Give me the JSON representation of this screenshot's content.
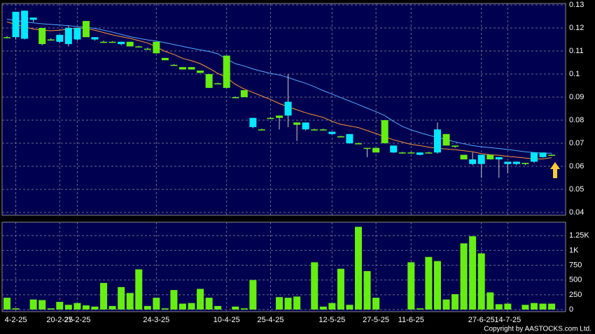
{
  "chart_data": {
    "type": "candlestick",
    "categories": [
      null,
      "4-2-25",
      null,
      null,
      null,
      null,
      "20-2-25",
      null,
      "27-2-25",
      null,
      null,
      null,
      null,
      null,
      null,
      null,
      null,
      "24-3-25",
      null,
      null,
      null,
      null,
      null,
      null,
      null,
      "10-4-25",
      null,
      null,
      null,
      null,
      "25-4-25",
      null,
      null,
      null,
      null,
      null,
      null,
      "12-5-25",
      null,
      null,
      null,
      null,
      "27-5-25",
      null,
      null,
      null,
      "11-6-25",
      null,
      null,
      null,
      null,
      null,
      null,
      null,
      "27-6-25",
      null,
      null,
      "14-7-25",
      null,
      null,
      null,
      null,
      null
    ],
    "open": [
      0.116,
      0.116,
      0.1153,
      0.1235,
      0.12,
      0.115,
      0.114,
      0.113,
      0.115,
      0.123,
      0.115,
      0.114,
      0.114,
      0.113,
      0.114,
      0.112,
      0.111,
      0.114,
      0.107,
      0.104,
      0.103,
      0.103,
      0.1015,
      0.1,
      0.096,
      0.108,
      0.09,
      0.093,
      0.077,
      0.076,
      0.081,
      0.082,
      0.082,
      0.079,
      0.076,
      0.076,
      0.076,
      0.074,
      0.073,
      0.07,
      0.07,
      0.068,
      0.068,
      0.08,
      0.066,
      0.066,
      0.066,
      0.065,
      0.066,
      0.066,
      0.074,
      0.069,
      0.065,
      0.061,
      0.061,
      0.065,
      0.063,
      0.061,
      0.061,
      0.0615,
      0.062,
      0.064,
      0.065
    ],
    "high": [
      0.1165,
      0.127,
      0.1275,
      0.1245,
      0.12,
      0.1155,
      0.117,
      0.121,
      0.12,
      0.123,
      0.116,
      0.1145,
      0.1143,
      0.114,
      0.114,
      0.1123,
      0.1115,
      0.114,
      0.107,
      0.1043,
      0.103,
      0.103,
      0.1015,
      0.1,
      0.0963,
      0.108,
      0.0903,
      0.093,
      0.081,
      0.0763,
      0.0813,
      0.082,
      0.1,
      0.079,
      0.079,
      0.0763,
      0.0763,
      0.075,
      0.0733,
      0.074,
      0.0703,
      0.068,
      0.068,
      0.08,
      0.069,
      0.0663,
      0.0663,
      0.066,
      0.0663,
      0.079,
      0.074,
      0.069,
      0.065,
      0.066,
      0.065,
      0.065,
      0.064,
      0.062,
      0.062,
      0.0615,
      0.066,
      0.066,
      0.0653
    ],
    "low": [
      0.1155,
      0.115,
      0.115,
      0.1225,
      0.1125,
      0.1145,
      0.1135,
      0.112,
      0.1145,
      0.116,
      0.1145,
      0.1135,
      0.1137,
      0.1125,
      0.112,
      0.1117,
      0.1105,
      0.109,
      0.106,
      0.1037,
      0.102,
      0.102,
      0.1005,
      0.094,
      0.0957,
      0.094,
      0.0897,
      0.09,
      0.0765,
      0.0757,
      0.0807,
      0.076,
      0.077,
      0.071,
      0.0755,
      0.0757,
      0.0757,
      0.0738,
      0.0727,
      0.0698,
      0.0697,
      0.064,
      0.066,
      0.07,
      0.0658,
      0.0657,
      0.0657,
      0.0648,
      0.0657,
      0.0655,
      0.069,
      0.068,
      0.063,
      0.0605,
      0.055,
      0.063,
      0.055,
      0.057,
      0.0605,
      0.0605,
      0.0615,
      0.0638,
      0.0647
    ],
    "close": [
      0.116,
      0.127,
      0.1275,
      0.1245,
      0.113,
      0.115,
      0.117,
      0.12,
      0.12,
      0.116,
      0.116,
      0.114,
      0.114,
      0.114,
      0.112,
      0.112,
      0.111,
      0.109,
      0.106,
      0.104,
      0.102,
      0.102,
      0.1005,
      0.094,
      0.096,
      0.094,
      0.09,
      0.09,
      0.081,
      0.076,
      0.081,
      0.081,
      0.088,
      0.078,
      0.079,
      0.076,
      0.076,
      0.075,
      0.073,
      0.074,
      0.07,
      0.068,
      0.066,
      0.07,
      0.069,
      0.066,
      0.066,
      0.066,
      0.066,
      0.076,
      0.069,
      0.0685,
      0.063,
      0.063,
      0.065,
      0.063,
      0.064,
      0.062,
      0.062,
      0.061,
      0.066,
      0.066,
      0.065
    ],
    "up_color": "#00e8ff",
    "down_color": "#66ee11",
    "ylim": [
      0.0388,
      0.1306
    ],
    "yticks": [
      0.04,
      0.05,
      0.06,
      0.07,
      0.08,
      0.09,
      0.1,
      0.11,
      0.12,
      0.13
    ],
    "grid": true,
    "lines": [
      {
        "color": "#55aaff",
        "values": [
          0.1238,
          0.1232,
          0.1226,
          0.1222,
          0.1218,
          0.1215,
          0.1213,
          0.121,
          0.1206,
          0.1203,
          0.1198,
          0.119,
          0.1182,
          0.1172,
          0.1162,
          0.1155,
          0.1148,
          0.1143,
          0.1136,
          0.1128,
          0.112,
          0.1112,
          0.1105,
          0.1098,
          0.1088,
          0.1065,
          0.1045,
          0.1035,
          0.1022,
          0.1012,
          0.1003,
          0.0996,
          0.0985,
          0.0972,
          0.096,
          0.0945,
          0.0928,
          0.0913,
          0.0898,
          0.0883,
          0.0868,
          0.0852,
          0.0837,
          0.082,
          0.0795,
          0.0773,
          0.0758,
          0.0746,
          0.0735,
          0.0725,
          0.0716,
          0.0706,
          0.0698,
          0.069,
          0.0685,
          0.0681,
          0.0677,
          0.0673,
          0.0668,
          0.0663,
          0.066,
          0.0657,
          0.0657
        ]
      },
      {
        "color": "#ff9933",
        "values": [
          0.1226,
          0.1215,
          0.1205,
          0.1195,
          0.119,
          0.1188,
          0.119,
          0.1195,
          0.12,
          0.1198,
          0.119,
          0.118,
          0.117,
          0.1162,
          0.1155,
          0.1145,
          0.1135,
          0.1118,
          0.1098,
          0.1085,
          0.1068,
          0.1058,
          0.1045,
          0.1025,
          0.1003,
          0.0985,
          0.0955,
          0.0935,
          0.092,
          0.0905,
          0.089,
          0.0872,
          0.0858,
          0.0845,
          0.0832,
          0.0822,
          0.0812,
          0.0795,
          0.0782,
          0.0775,
          0.0768,
          0.0755,
          0.0742,
          0.0728,
          0.0715,
          0.0705,
          0.0695,
          0.069,
          0.0683,
          0.0678,
          0.0675,
          0.0672,
          0.0668,
          0.0663,
          0.0655,
          0.065,
          0.0648,
          0.0643,
          0.064,
          0.0636,
          0.0632,
          0.0632,
          0.0638
        ]
      }
    ],
    "volume": {
      "color": "#66ee11",
      "values": [
        200,
        20,
        0,
        170,
        160,
        20,
        130,
        80,
        110,
        70,
        50,
        450,
        60,
        380,
        280,
        680,
        60,
        200,
        20,
        330,
        100,
        110,
        350,
        200,
        60,
        0,
        50,
        20,
        500,
        0,
        0,
        210,
        200,
        220,
        0,
        800,
        50,
        110,
        690,
        80,
        1400,
        650,
        200,
        0,
        0,
        0,
        800,
        20,
        890,
        820,
        170,
        260,
        1120,
        1240,
        950,
        290,
        90,
        100,
        0,
        80,
        110,
        100,
        100
      ],
      "ylim": [
        0,
        1478
      ],
      "yticks": [
        0,
        250,
        500,
        750,
        {
          "value": 1000,
          "label": "1K"
        },
        {
          "value": 1250,
          "label": "1.25K"
        }
      ]
    },
    "copyright": "Copyright by AASTOCKS.com Ltd."
  }
}
